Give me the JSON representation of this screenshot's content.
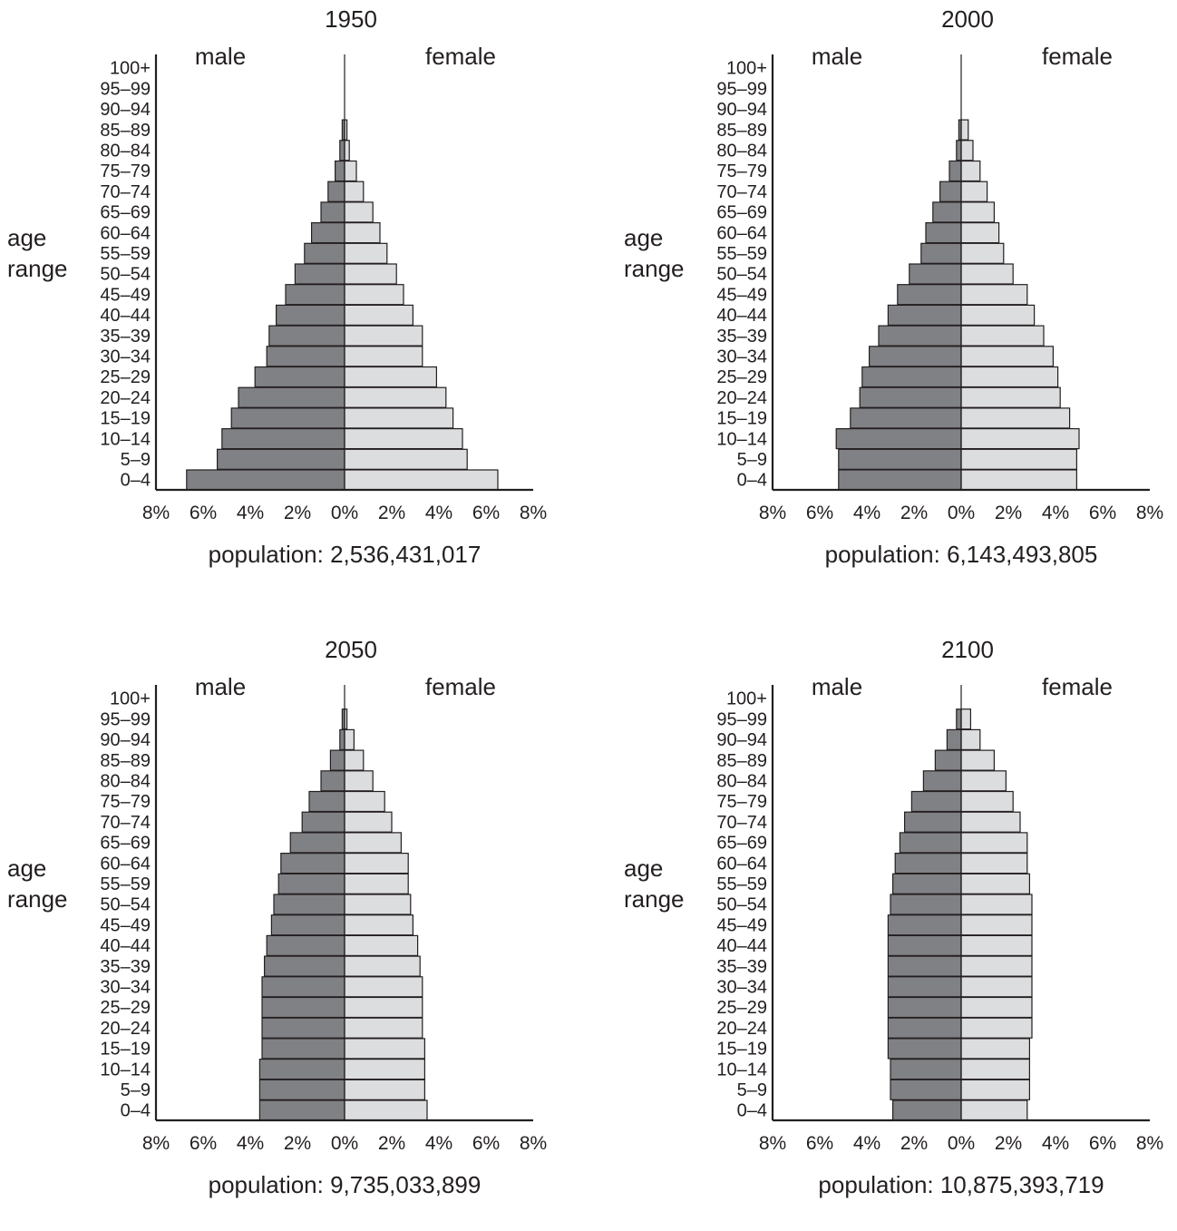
{
  "labels": {
    "male": "male",
    "female": "female",
    "age_title_line1": "age",
    "age_title_line2": "range",
    "age_groups": [
      "0–4",
      "5–9",
      "10–14",
      "15–19",
      "20–24",
      "25–29",
      "30–34",
      "35–39",
      "40–44",
      "45–49",
      "50–54",
      "55–59",
      "60–64",
      "65–69",
      "70–74",
      "75–79",
      "80–84",
      "85–89",
      "90–94",
      "95–99",
      "100+"
    ],
    "x_ticks": [
      "8%",
      "6%",
      "4%",
      "2%",
      "0%",
      "2%",
      "4%",
      "6%",
      "8%"
    ]
  },
  "colors": {
    "male": "#808184",
    "female": "#dcdddf",
    "ink": "#231f20"
  },
  "chart_data": [
    {
      "type": "bar",
      "orientation": "horizontal-pyramid",
      "title": "1950",
      "categories": [
        "0–4",
        "5–9",
        "10–14",
        "15–19",
        "20–24",
        "25–29",
        "30–34",
        "35–39",
        "40–44",
        "45–49",
        "50–54",
        "55–59",
        "60–64",
        "65–69",
        "70–74",
        "75–79",
        "80–84",
        "85–89",
        "90–94",
        "95–99",
        "100+"
      ],
      "series": [
        {
          "name": "male",
          "values": [
            6.7,
            5.4,
            5.2,
            4.8,
            4.5,
            3.8,
            3.3,
            3.2,
            2.9,
            2.5,
            2.1,
            1.7,
            1.4,
            1.0,
            0.7,
            0.4,
            0.2,
            0.1,
            0,
            0,
            0
          ]
        },
        {
          "name": "female",
          "values": [
            6.5,
            5.2,
            5.0,
            4.6,
            4.3,
            3.9,
            3.3,
            3.3,
            2.9,
            2.5,
            2.2,
            1.8,
            1.5,
            1.2,
            0.8,
            0.5,
            0.2,
            0.1,
            0,
            0,
            0
          ]
        }
      ],
      "xlim": [
        -8,
        8
      ],
      "ylabel": "age range",
      "population_text": "population: 2,536,431,017"
    },
    {
      "type": "bar",
      "orientation": "horizontal-pyramid",
      "title": "2000",
      "categories": [
        "0–4",
        "5–9",
        "10–14",
        "15–19",
        "20–24",
        "25–29",
        "30–34",
        "35–39",
        "40–44",
        "45–49",
        "50–54",
        "55–59",
        "60–64",
        "65–69",
        "70–74",
        "75–79",
        "80–84",
        "85–89",
        "90–94",
        "95–99",
        "100+"
      ],
      "series": [
        {
          "name": "male",
          "values": [
            5.2,
            5.2,
            5.3,
            4.7,
            4.3,
            4.2,
            3.9,
            3.5,
            3.1,
            2.7,
            2.2,
            1.7,
            1.5,
            1.2,
            0.9,
            0.5,
            0.2,
            0.1,
            0,
            0,
            0
          ]
        },
        {
          "name": "female",
          "values": [
            4.9,
            4.9,
            5.0,
            4.6,
            4.2,
            4.1,
            3.9,
            3.5,
            3.1,
            2.8,
            2.2,
            1.8,
            1.6,
            1.4,
            1.1,
            0.8,
            0.5,
            0.3,
            0,
            0,
            0
          ]
        }
      ],
      "xlim": [
        -8,
        8
      ],
      "ylabel": "age range",
      "population_text": "population: 6,143,493,805"
    },
    {
      "type": "bar",
      "orientation": "horizontal-pyramid",
      "title": "2050",
      "categories": [
        "0–4",
        "5–9",
        "10–14",
        "15–19",
        "20–24",
        "25–29",
        "30–34",
        "35–39",
        "40–44",
        "45–49",
        "50–54",
        "55–59",
        "60–64",
        "65–69",
        "70–74",
        "75–79",
        "80–84",
        "85–89",
        "90–94",
        "95–99",
        "100+"
      ],
      "series": [
        {
          "name": "male",
          "values": [
            3.6,
            3.6,
            3.6,
            3.5,
            3.5,
            3.5,
            3.5,
            3.4,
            3.3,
            3.1,
            3.0,
            2.8,
            2.7,
            2.3,
            1.8,
            1.5,
            1.0,
            0.6,
            0.2,
            0.1,
            0
          ]
        },
        {
          "name": "female",
          "values": [
            3.5,
            3.4,
            3.4,
            3.4,
            3.3,
            3.3,
            3.3,
            3.2,
            3.1,
            2.9,
            2.8,
            2.7,
            2.7,
            2.4,
            2.0,
            1.7,
            1.2,
            0.8,
            0.4,
            0.1,
            0
          ]
        }
      ],
      "xlim": [
        -8,
        8
      ],
      "ylabel": "age range",
      "population_text": "population: 9,735,033,899"
    },
    {
      "type": "bar",
      "orientation": "horizontal-pyramid",
      "title": "2100",
      "categories": [
        "0–4",
        "5–9",
        "10–14",
        "15–19",
        "20–24",
        "25–29",
        "30–34",
        "35–39",
        "40–44",
        "45–49",
        "50–54",
        "55–59",
        "60–64",
        "65–69",
        "70–74",
        "75–79",
        "80–84",
        "85–89",
        "90–94",
        "95–99",
        "100+"
      ],
      "series": [
        {
          "name": "male",
          "values": [
            2.9,
            3.0,
            3.0,
            3.1,
            3.1,
            3.1,
            3.1,
            3.1,
            3.1,
            3.1,
            3.0,
            2.9,
            2.8,
            2.6,
            2.4,
            2.1,
            1.6,
            1.1,
            0.6,
            0.2,
            0
          ]
        },
        {
          "name": "female",
          "values": [
            2.8,
            2.9,
            2.9,
            2.9,
            3.0,
            3.0,
            3.0,
            3.0,
            3.0,
            3.0,
            3.0,
            2.9,
            2.8,
            2.8,
            2.5,
            2.2,
            1.9,
            1.4,
            0.8,
            0.4,
            0
          ]
        }
      ],
      "xlim": [
        -8,
        8
      ],
      "ylabel": "age range",
      "population_text": "population: 10,875,393,719"
    }
  ]
}
